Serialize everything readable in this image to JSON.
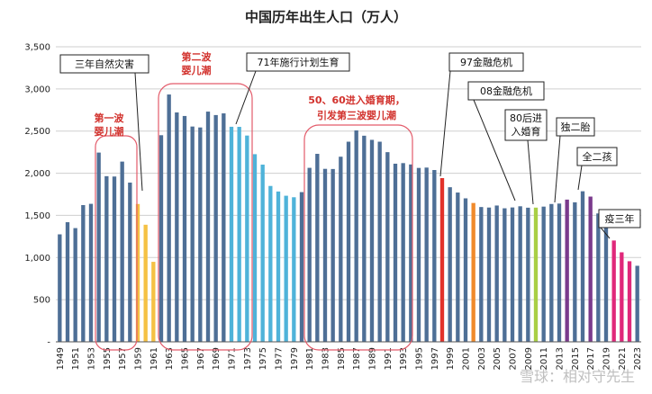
{
  "chart_data": {
    "type": "bar",
    "title": "中国历年出生人口（万人）",
    "xlabel": "",
    "ylabel": "",
    "ylim": [
      0,
      3500
    ],
    "yticks": [
      "-",
      "500",
      "1,000",
      "1,500",
      "2,000",
      "2,500",
      "3,000",
      "3,500"
    ],
    "grid": true,
    "legend": "none",
    "x": [
      1949,
      1950,
      1951,
      1952,
      1953,
      1954,
      1955,
      1956,
      1957,
      1958,
      1959,
      1960,
      1961,
      1962,
      1963,
      1964,
      1965,
      1966,
      1967,
      1968,
      1969,
      1970,
      1971,
      1972,
      1973,
      1974,
      1975,
      1976,
      1977,
      1978,
      1979,
      1980,
      1981,
      1982,
      1983,
      1984,
      1985,
      1986,
      1987,
      1988,
      1989,
      1990,
      1991,
      1992,
      1993,
      1994,
      1995,
      1996,
      1997,
      1998,
      1999,
      2000,
      2001,
      2002,
      2003,
      2004,
      2005,
      2006,
      2007,
      2008,
      2009,
      2010,
      2011,
      2012,
      2013,
      2014,
      2015,
      2016,
      2017,
      2018,
      2019,
      2020,
      2021,
      2022,
      2023
    ],
    "x_tick_labels": [
      "1949",
      "1951",
      "1953",
      "1955",
      "1957",
      "1959",
      "1961",
      "1963",
      "1965",
      "1967",
      "1969",
      "1971",
      "1973",
      "1975",
      "1977",
      "1979",
      "1981",
      "1983",
      "1985",
      "1987",
      "1989",
      "1991",
      "1993",
      "1995",
      "1997",
      "1999",
      "2001",
      "2003",
      "2005",
      "2007",
      "2009",
      "2011",
      "2013",
      "2015",
      "2017",
      "2019",
      "2021",
      "2023"
    ],
    "values": [
      1275,
      1419,
      1349,
      1622,
      1637,
      2245,
      1965,
      1961,
      2138,
      1889,
      1635,
      1389,
      949,
      2451,
      2934,
      2721,
      2679,
      2554,
      2543,
      2731,
      2690,
      2710,
      2551,
      2550,
      2447,
      2226,
      2102,
      1849,
      1783,
      1733,
      1715,
      1776,
      2064,
      2230,
      2052,
      2050,
      2196,
      2374,
      2508,
      2445,
      2396,
      2374,
      2250,
      2113,
      2120,
      2104,
      2063,
      2067,
      2038,
      1942,
      1834,
      1771,
      1702,
      1647,
      1599,
      1593,
      1617,
      1584,
      1594,
      1608,
      1591,
      1592,
      1604,
      1635,
      1640,
      1687,
      1655,
      1786,
      1723,
      1523,
      1465,
      1202,
      1062,
      956,
      902
    ],
    "colors": {
      "default": "#4e6f96",
      "famine": "#f5c144",
      "second_wave": "#4fb3d9",
      "fin_crisis_1997": "#e2322a",
      "fin_crisis_2008": "#f08a2b",
      "post80": "#a9cf45",
      "second_child": "#7a3a8c",
      "pandemic": "#e0287a"
    },
    "annotations": {
      "famine": "三年自然灾害",
      "first_wave": [
        "第一波",
        "婴儿潮"
      ],
      "second_wave": [
        "第二波",
        "婴儿潮"
      ],
      "family_planning": "71年施行计划生育",
      "third_wave": [
        "50、60进入婚育期，",
        "引发第三波婴儿潮"
      ],
      "crisis_97": "97金融危机",
      "crisis_08": "08金融危机",
      "post80": [
        "80后进",
        "入婚育"
      ],
      "single_second_child": "独二胎",
      "full_second_child": "全二孩",
      "pandemic": "疫三年"
    }
  },
  "watermark": "雪球：相对守先生"
}
